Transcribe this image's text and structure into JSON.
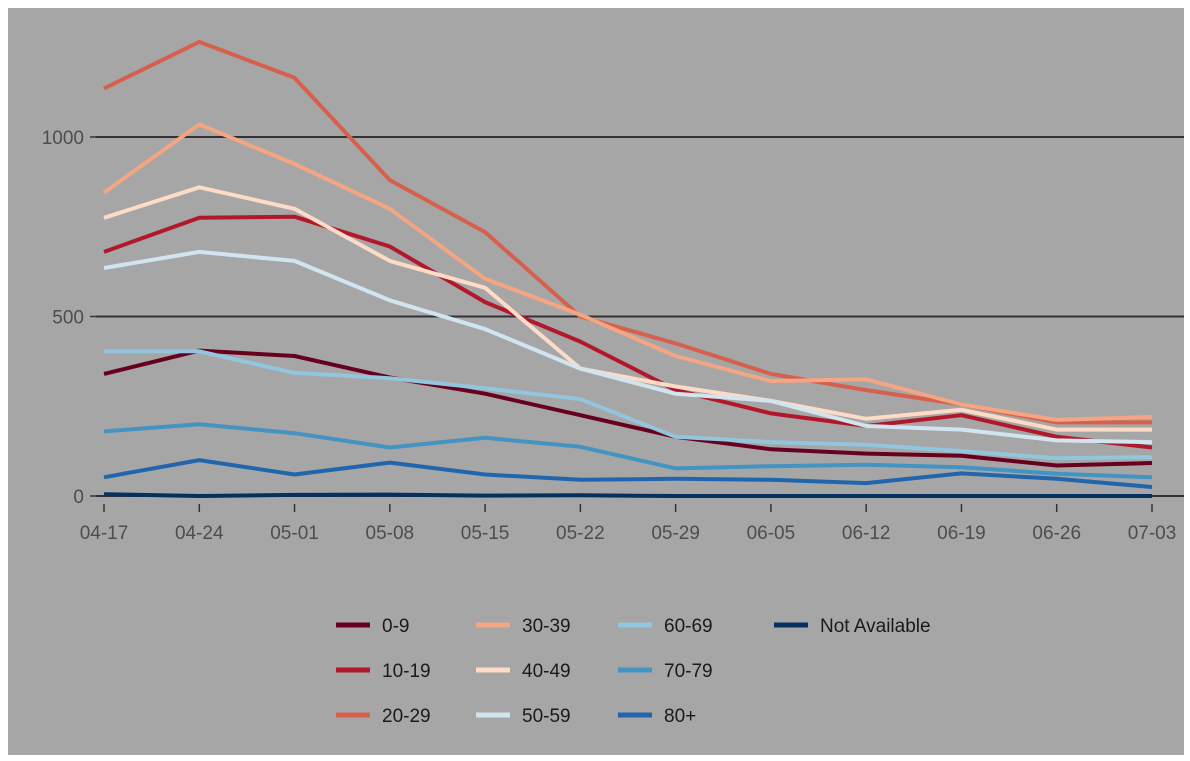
{
  "chart_data": {
    "type": "line",
    "title": "",
    "xlabel": "",
    "ylabel": "",
    "ylim": [
      0,
      1280
    ],
    "y_ticks": [
      0,
      500,
      1000
    ],
    "grid": "horizontal major lines",
    "legend_position": "bottom",
    "categories": [
      "04-17",
      "04-24",
      "05-01",
      "05-08",
      "05-15",
      "05-22",
      "05-29",
      "06-05",
      "06-12",
      "06-19",
      "06-26",
      "07-03"
    ],
    "series": [
      {
        "name": "0-9",
        "color": "#67001f",
        "values": [
          340,
          405,
          390,
          330,
          285,
          225,
          165,
          130,
          118,
          112,
          85,
          92
        ]
      },
      {
        "name": "10-19",
        "color": "#b2182b",
        "values": [
          680,
          775,
          778,
          695,
          540,
          430,
          295,
          230,
          195,
          225,
          165,
          135
        ]
      },
      {
        "name": "20-29",
        "color": "#d6604d",
        "values": [
          1135,
          1265,
          1165,
          880,
          735,
          500,
          425,
          340,
          295,
          255,
          205,
          205
        ]
      },
      {
        "name": "30-39",
        "color": "#f4a582",
        "values": [
          845,
          1035,
          925,
          800,
          605,
          505,
          390,
          320,
          325,
          255,
          212,
          220
        ]
      },
      {
        "name": "40-49",
        "color": "#fddbc7",
        "values": [
          775,
          860,
          800,
          655,
          580,
          355,
          305,
          265,
          215,
          240,
          185,
          185
        ]
      },
      {
        "name": "50-59",
        "color": "#d1e5f0",
        "values": [
          635,
          680,
          655,
          545,
          465,
          355,
          285,
          265,
          195,
          185,
          155,
          150
        ]
      },
      {
        "name": "60-69",
        "color": "#92c5de",
        "values": [
          403,
          403,
          343,
          328,
          300,
          270,
          165,
          150,
          143,
          125,
          105,
          108
        ]
      },
      {
        "name": "70-79",
        "color": "#4393c3",
        "values": [
          180,
          200,
          175,
          135,
          162,
          137,
          77,
          83,
          87,
          80,
          62,
          52
        ]
      },
      {
        "name": "80+",
        "color": "#2166ac",
        "values": [
          52,
          100,
          60,
          93,
          60,
          45,
          48,
          45,
          36,
          63,
          48,
          25
        ]
      },
      {
        "name": "Not Available",
        "color": "#053061",
        "values": [
          5,
          0,
          3,
          4,
          1,
          2,
          0,
          0,
          0,
          0,
          0,
          0
        ]
      }
    ]
  }
}
